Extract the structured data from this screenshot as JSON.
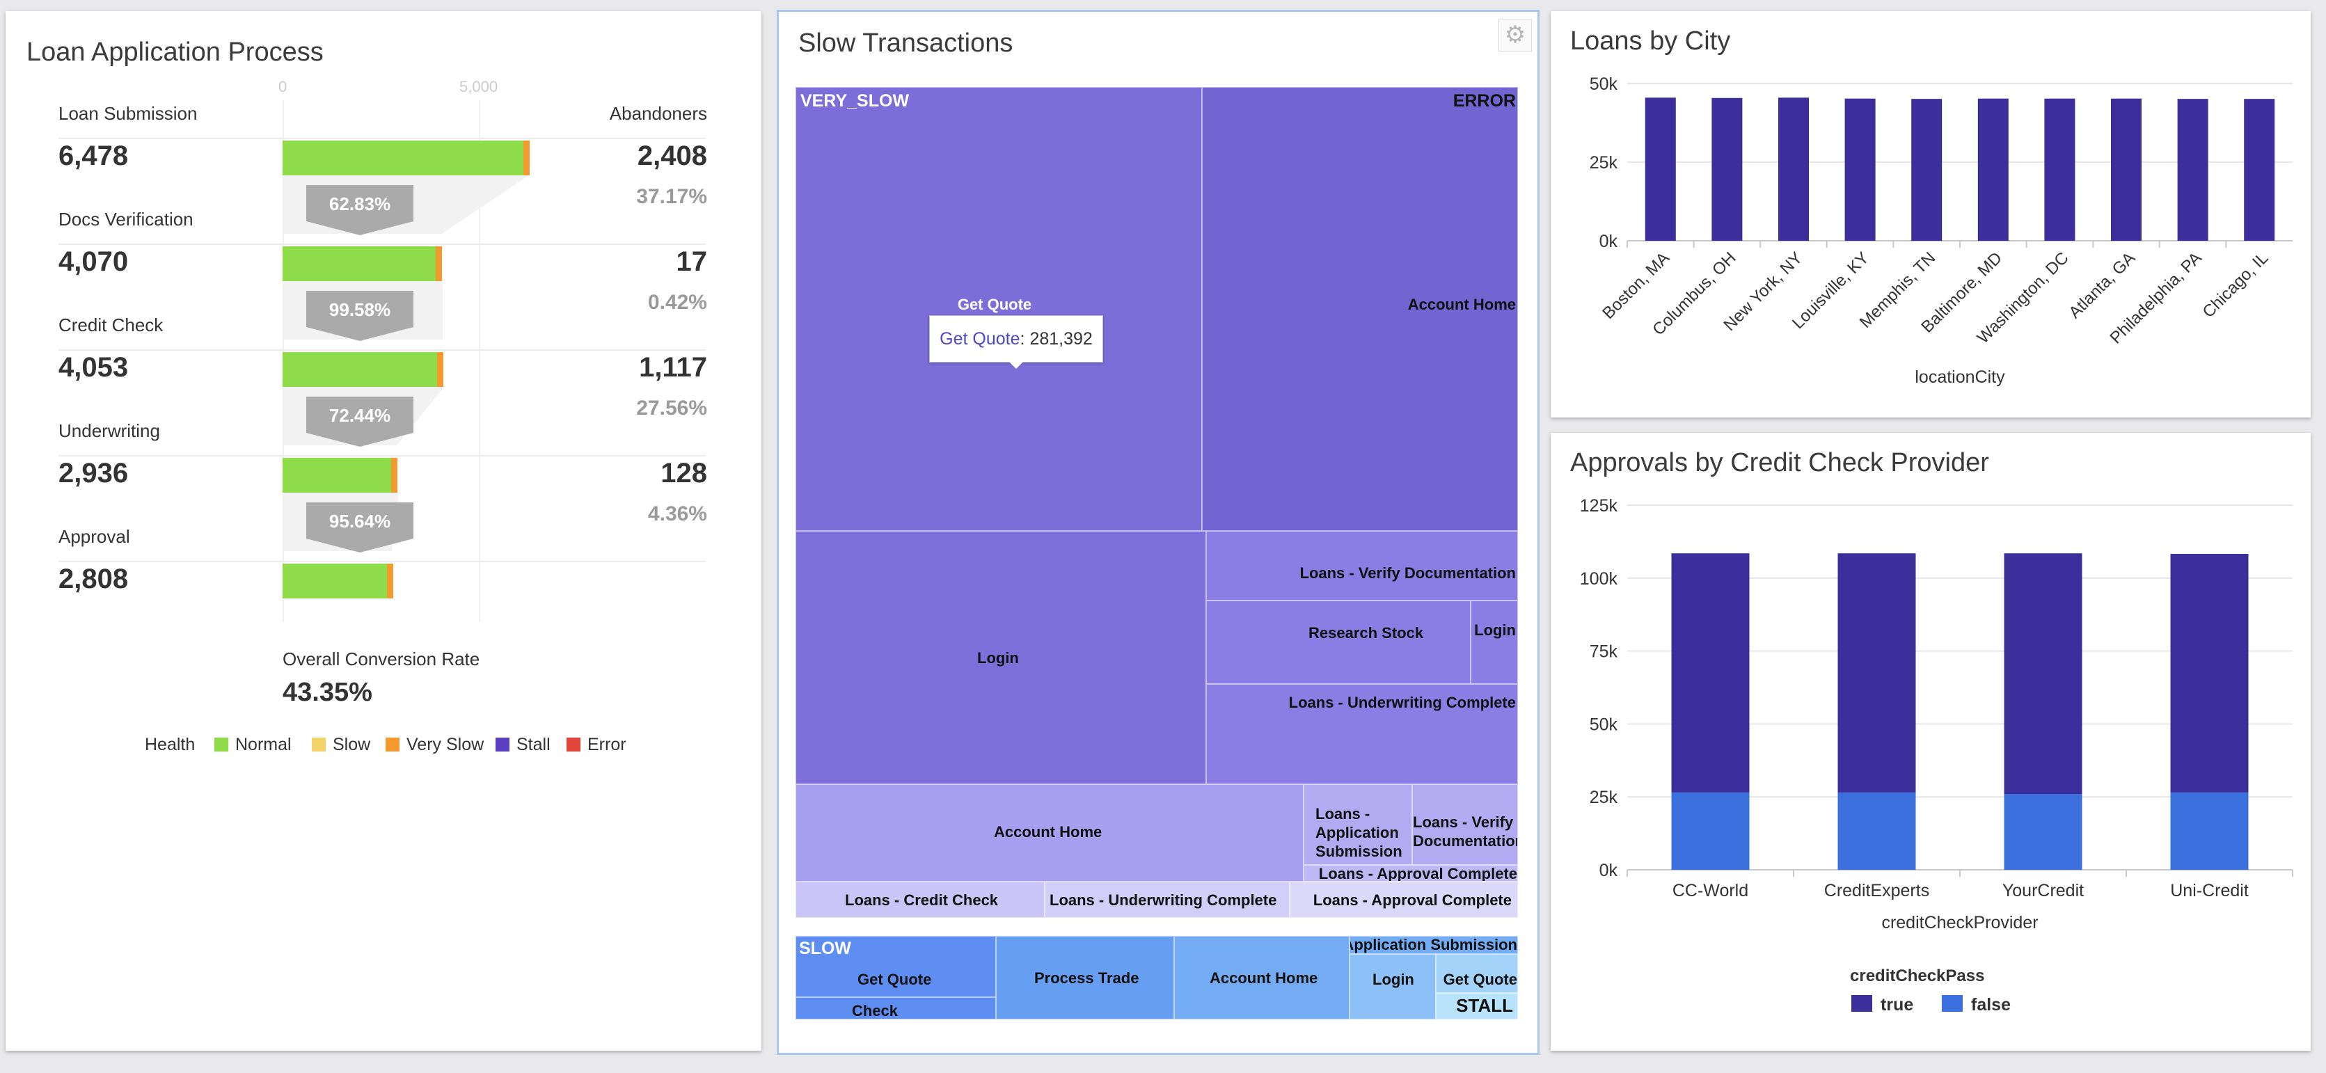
{
  "funnel": {
    "title": "Loan Application Process",
    "axis_ticks": [
      "0",
      "5,000"
    ],
    "abandoners_header": "Abandoners",
    "stages": [
      {
        "label": "Loan Submission",
        "value": "6,478",
        "abandoners": "2,408",
        "abandon_pct": "37.17%",
        "conversion": "62.83%",
        "total": 6478
      },
      {
        "label": "Docs Verification",
        "value": "4,070",
        "abandoners": "17",
        "abandon_pct": "0.42%",
        "conversion": "99.58%",
        "total": 4070
      },
      {
        "label": "Credit Check",
        "value": "4,053",
        "abandoners": "1,117",
        "abandon_pct": "27.56%",
        "conversion": "72.44%",
        "total": 4053
      },
      {
        "label": "Underwriting",
        "value": "2,936",
        "abandoners": "128",
        "abandon_pct": "4.36%",
        "conversion": "95.64%",
        "total": 2936
      },
      {
        "label": "Approval",
        "value": "2,808",
        "abandoners": "",
        "abandon_pct": "",
        "conversion": "",
        "total": 2808
      }
    ],
    "overall_label": "Overall Conversion Rate",
    "overall_value": "43.35%",
    "legend": {
      "title": "Health",
      "items": [
        {
          "label": "Normal",
          "color": "#8fdc4a"
        },
        {
          "label": "Slow",
          "color": "#f4d36b"
        },
        {
          "label": "Very Slow",
          "color": "#f29a2e"
        },
        {
          "label": "Stall",
          "color": "#5a3fc0"
        },
        {
          "label": "Error",
          "color": "#e0473a"
        }
      ]
    }
  },
  "slow": {
    "title": "Slow Transactions",
    "tooltip": {
      "key": "Get Quote",
      "value": "281,392"
    },
    "cells": [
      {
        "id": "vs-getquote",
        "group": "VERY_SLOW",
        "label": "Get Quote",
        "color": "#7c6dd9"
      },
      {
        "id": "err-accounthome",
        "group": "ERROR",
        "label": "Account Home",
        "color": "#7264d1"
      },
      {
        "id": "vs-login",
        "label": "Login",
        "color": "#7e6fdb"
      },
      {
        "id": "verify-doc",
        "label": "Loans - Verify Documentation",
        "color": "#8b7de4"
      },
      {
        "id": "research-stock",
        "label": "Research Stock",
        "color": "#8b7de4"
      },
      {
        "id": "login-2",
        "label": "Login",
        "color": "#8b7de4"
      },
      {
        "id": "uw-complete",
        "label": "Loans - Underwriting Complete",
        "color": "#8b7de4"
      },
      {
        "id": "account-home-2",
        "label": "Account Home",
        "color": "#a79ff0"
      },
      {
        "id": "app-submission",
        "label": "Loans - Application Submission",
        "color": "#b3abf2"
      },
      {
        "id": "verify-doc-2",
        "label": "Loans - Verify Documentation",
        "color": "#b3abf2"
      },
      {
        "id": "approval-complete-1",
        "label": "Loans - Approval Complete",
        "color": "#bfb8f5"
      },
      {
        "id": "credit-check",
        "label": "Loans - Credit Check",
        "color": "#cbc5f7"
      },
      {
        "id": "uw-complete-2",
        "label": "Loans - Underwriting Complete",
        "color": "#d3cef8"
      },
      {
        "id": "approval-complete-2",
        "label": "Loans - Approval Complete",
        "color": "#dcd8fa"
      },
      {
        "id": "slow-getquote",
        "group": "SLOW",
        "label": "Get Quote",
        "color": "#5e8ef2"
      },
      {
        "id": "slow-creditcheck",
        "label": "Loans - Credit Check",
        "color": "#5e8ef2"
      },
      {
        "id": "process-trade",
        "label": "Process Trade",
        "color": "#669ef2"
      },
      {
        "id": "slow-accounthome",
        "label": "Account Home",
        "color": "#74acf4"
      },
      {
        "id": "slow-appsub",
        "label": "Loans - Application Submission",
        "color": "#74acf4"
      },
      {
        "id": "slow-login",
        "label": "Login",
        "color": "#8dc0f7"
      },
      {
        "id": "slow-getquote-2",
        "label": "Get Quote",
        "color": "#a4d3fa"
      },
      {
        "id": "stall",
        "group": "STALL",
        "label": "",
        "color": "#b9e2fc"
      }
    ]
  },
  "loans_by_city": {
    "title": "Loans by City",
    "chart_data": {
      "type": "bar",
      "categories": [
        "Boston, MA",
        "Columbus, OH",
        "New York, NY",
        "Louisville, KY",
        "Memphis, TN",
        "Baltimore, MD",
        "Washington, DC",
        "Atlanta, GA",
        "Philadelphia, PA",
        "Chicago, IL"
      ],
      "values": [
        45500,
        45400,
        45500,
        45200,
        45100,
        45200,
        45200,
        45200,
        45100,
        45100
      ],
      "xlabel": "locationCity",
      "ylabel": "",
      "ylim": [
        0,
        50000
      ],
      "yticks": [
        "0k",
        "25k",
        "50k"
      ],
      "color": "#3d2f9b",
      "grid": true
    }
  },
  "approvals": {
    "title": "Approvals by Credit Check Provider",
    "chart_data": {
      "type": "bar",
      "stacked": true,
      "categories": [
        "CC-World",
        "CreditExperts",
        "YourCredit",
        "Uni-Credit"
      ],
      "series": [
        {
          "name": "true",
          "values": [
            82000,
            82000,
            82500,
            81800
          ],
          "color": "#3d2f9b"
        },
        {
          "name": "false",
          "values": [
            26500,
            26500,
            26000,
            26500
          ],
          "color": "#3a6fdd"
        }
      ],
      "xlabel": "creditCheckProvider",
      "ylabel": "",
      "ylim": [
        0,
        125000
      ],
      "yticks": [
        "0k",
        "25k",
        "50k",
        "75k",
        "100k",
        "125k"
      ],
      "legend_title": "creditCheckPass",
      "legend_placement": "bottom",
      "grid": true
    }
  }
}
